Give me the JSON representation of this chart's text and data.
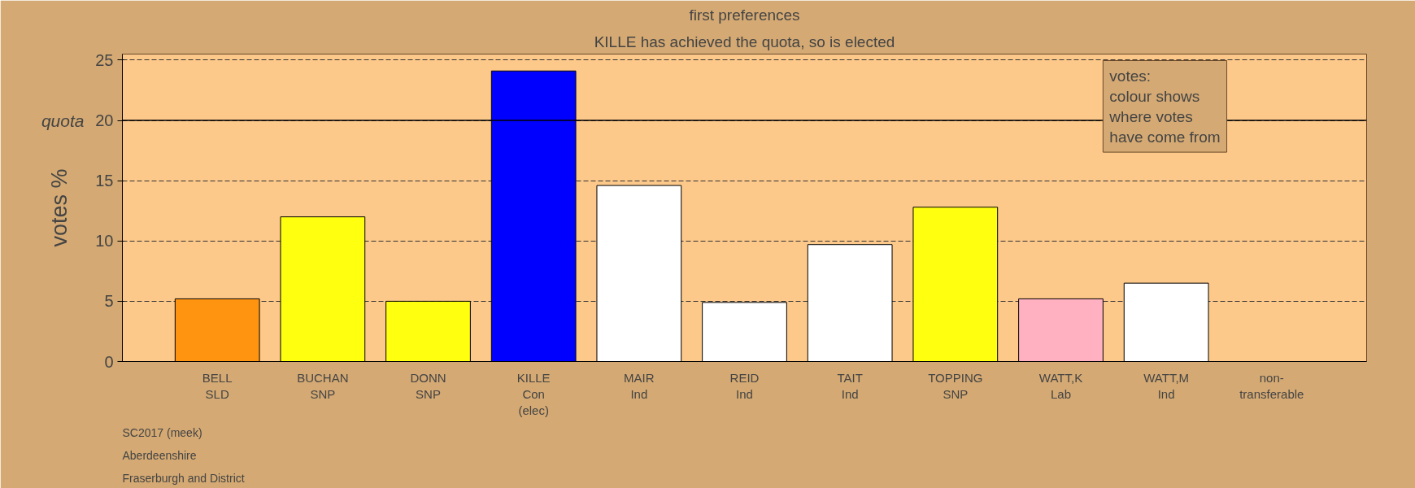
{
  "chart_data": {
    "type": "bar",
    "title": "first preferences",
    "subtitle": "KILLE has achieved the quota, so is elected",
    "ylabel": "votes %",
    "categories": [
      "BELL\nSLD",
      "BUCHAN\nSNP",
      "DONN\nSNP",
      "KILLE\nCon\n(elec)",
      "MAIR\nInd",
      "REID\nInd",
      "TAIT\nInd",
      "TOPPING\nSNP",
      "WATT,K\nLab",
      "WATT,M\nInd",
      "non-\ntransferable"
    ],
    "values": [
      5.2,
      12.0,
      5.0,
      24.1,
      14.6,
      4.9,
      9.7,
      12.8,
      5.2,
      6.5,
      0
    ],
    "colors": [
      "#ff9410",
      "#ffff10",
      "#ffff10",
      "#0000ff",
      "#ffffff",
      "#ffffff",
      "#ffffff",
      "#ffff10",
      "#ffb1c1",
      "#ffffff",
      "#ffffff"
    ],
    "ylim": [
      0,
      25.5
    ],
    "yticks": [
      0,
      5,
      10,
      15,
      20,
      25
    ],
    "grid": "y",
    "ref_lines": [
      {
        "axis": "y",
        "value": 20,
        "label": "quota"
      }
    ],
    "annotations": [
      "votes:\ncolour shows\nwhere votes\nhave come from",
      "SC2017 (meek)",
      "Aberdeenshire",
      "Fraserburgh and District"
    ]
  }
}
